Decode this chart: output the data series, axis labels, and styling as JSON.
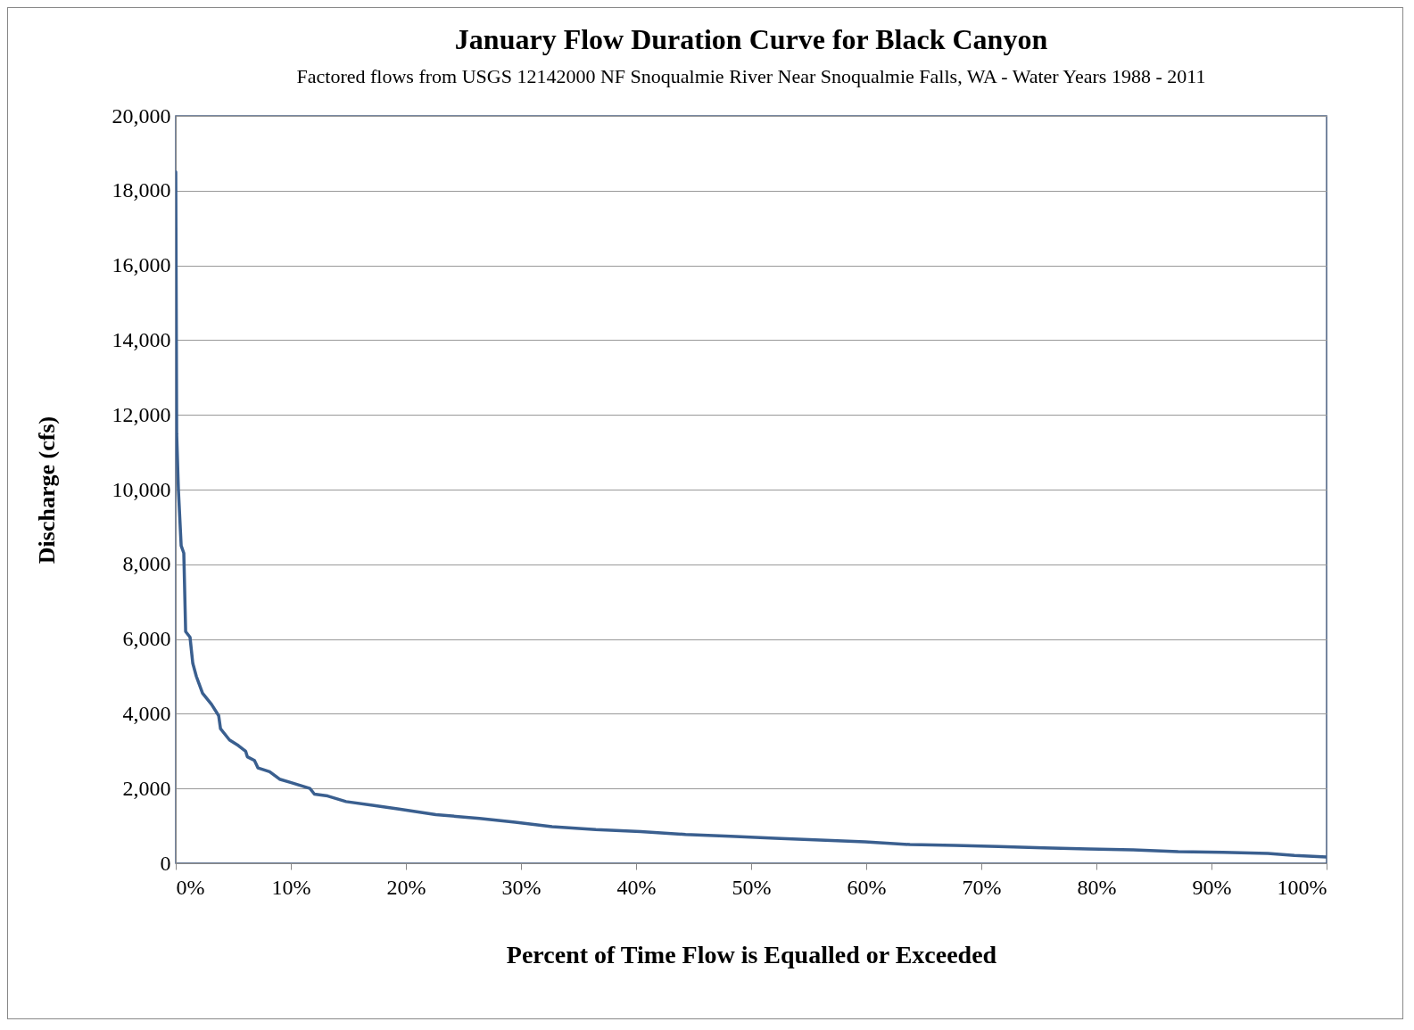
{
  "chart_data": {
    "type": "line",
    "title": "January Flow Duration Curve for Black Canyon",
    "subtitle": "Factored flows from USGS 12142000 NF Snoqualmie River Near Snoqualmie Falls, WA - Water Years 1988 - 2011",
    "xlabel": "Percent of Time Flow is Equalled or Exceeded",
    "ylabel": "Discharge (cfs)",
    "x": [
      0,
      0.08,
      0.23,
      0.47,
      0.7,
      0.86,
      1.24,
      1.48,
      1.79,
      2.33,
      3.11,
      3.73,
      3.89,
      4.67,
      5.44,
      6.07,
      6.22,
      6.84,
      7.15,
      8.16,
      9.02,
      10.1,
      11.66,
      12.05,
      13.2,
      14.8,
      17.1,
      19.4,
      22.6,
      26.4,
      29.5,
      32.7,
      36.5,
      40.4,
      44.3,
      48.2,
      52.1,
      56,
      59.9,
      63.8,
      67.7,
      71.5,
      75.4,
      79.3,
      83.2,
      87.1,
      91,
      94.9,
      97.2,
      100
    ],
    "series": [
      {
        "color": "#3a5f8f",
        "values": [
          18500,
          11500,
          10000,
          8500,
          8300,
          6200,
          6050,
          5350,
          5000,
          4550,
          4250,
          3950,
          3600,
          3300,
          3150,
          3000,
          2850,
          2750,
          2550,
          2450,
          2250,
          2150,
          2000,
          1850,
          1800,
          1650,
          1550,
          1450,
          1300,
          1200,
          1100,
          980,
          900,
          850,
          770,
          720,
          670,
          620,
          570,
          500,
          480,
          450,
          410,
          380,
          360,
          310,
          290,
          260,
          210,
          170
        ]
      }
    ],
    "xlim": [
      0,
      100
    ],
    "xticks": [
      {
        "value": 0,
        "label": "0%"
      },
      {
        "value": 10,
        "label": "10%"
      },
      {
        "value": 20,
        "label": "20%"
      },
      {
        "value": 30,
        "label": "30%"
      },
      {
        "value": 40,
        "label": "40%"
      },
      {
        "value": 50,
        "label": "50%"
      },
      {
        "value": 60,
        "label": "60%"
      },
      {
        "value": 70,
        "label": "70%"
      },
      {
        "value": 80,
        "label": "80%"
      },
      {
        "value": 90,
        "label": "90%"
      },
      {
        "value": 100,
        "label": "100%"
      }
    ],
    "ylim": [
      0,
      20000
    ],
    "yticks": [
      0,
      {
        "value": 2000,
        "label": "2,000"
      },
      {
        "value": 4000,
        "label": "4,000"
      },
      {
        "value": 6000,
        "label": "6,000"
      },
      {
        "value": 8000,
        "label": "8,000"
      },
      {
        "value": 10000,
        "label": "10,000"
      },
      {
        "value": 12000,
        "label": "12,000"
      },
      {
        "value": 14000,
        "label": "14,000"
      },
      {
        "value": 16000,
        "label": "16,000"
      },
      {
        "value": 18000,
        "label": "18,000"
      },
      {
        "value": 20000,
        "label": "20,000"
      }
    ],
    "grid": "y",
    "marker": "none",
    "line_style": "solid"
  }
}
